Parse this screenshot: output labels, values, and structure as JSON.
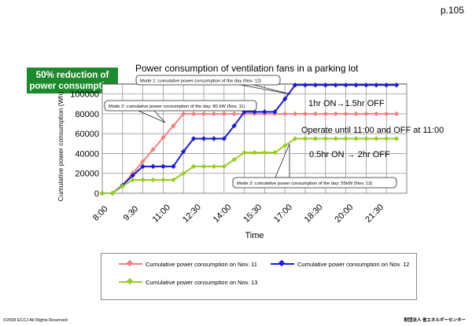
{
  "page": {
    "number": "p.105",
    "badge_line1": "50% reduction of",
    "badge_line2": "power consumption",
    "copyright": "©2008 ECCJ All Rights Reserved",
    "org": "財団法人 省エネルギーセンター"
  },
  "colors": {
    "nov11": "#f08080",
    "nov12": "#1a1adc",
    "nov13": "#99cc22",
    "badge": "#1e8a2e"
  },
  "chart_data": {
    "type": "line",
    "title": "Power consumption of ventilation fans in a parking lot",
    "xlabel": "Time",
    "ylabel": "Cumulative power consumption (Wh)",
    "x_ticks": [
      "8:00",
      "9:30",
      "11:00",
      "12:30",
      "14:00",
      "15:30",
      "17:00",
      "18:30",
      "20:00",
      "21:30"
    ],
    "y_ticks": [
      "0",
      "20000",
      "40000",
      "60000",
      "80000",
      "100000"
    ],
    "xlim_hours": [
      8,
      23
    ],
    "ylim": [
      0,
      110000
    ],
    "grid": true,
    "legend_position": "bottom",
    "series": [
      {
        "name": "Cumulative power consumption on Nov. 11",
        "color_key": "nov11",
        "x_hours": [
          8,
          8.5,
          9,
          9.5,
          10,
          10.5,
          11,
          11.5,
          12,
          12.5,
          13,
          13.5,
          14,
          14.5,
          15,
          15.5,
          16,
          16.5,
          17,
          17.5,
          18,
          18.5,
          19,
          19.5,
          20,
          20.5,
          21,
          21.5,
          22,
          22.5
        ],
        "values": [
          0,
          0,
          8000,
          20000,
          32000,
          44000,
          56000,
          68000,
          80000,
          80000,
          80000,
          80000,
          80000,
          80000,
          80000,
          80000,
          80000,
          80000,
          80000,
          80000,
          80000,
          80000,
          80000,
          80000,
          80000,
          80000,
          80000,
          80000,
          80000,
          80000
        ]
      },
      {
        "name": "Cumulative power consumption on Nov. 12",
        "color_key": "nov12",
        "x_hours": [
          8,
          8.5,
          9,
          9.5,
          10,
          10.5,
          11,
          11.5,
          12,
          12.5,
          13,
          13.5,
          14,
          14.5,
          15,
          15.5,
          16,
          16.5,
          17,
          17.5,
          18,
          18.5,
          19,
          19.5,
          20,
          20.5,
          21,
          21.5,
          22,
          22.5
        ],
        "values": [
          0,
          0,
          8000,
          18000,
          27000,
          27000,
          27000,
          27000,
          42000,
          55000,
          55000,
          55000,
          55000,
          68000,
          82000,
          82000,
          82000,
          82000,
          95000,
          109000,
          109000,
          109000,
          109000,
          109000,
          109000,
          109000,
          109000,
          109000,
          109000,
          109000
        ]
      },
      {
        "name": "Cumulative power consumption on Nov. 13",
        "color_key": "nov13",
        "x_hours": [
          8,
          8.5,
          9,
          9.5,
          10,
          10.5,
          11,
          11.5,
          12,
          12.5,
          13,
          13.5,
          14,
          14.5,
          15,
          15.5,
          16,
          16.5,
          17,
          17.5,
          18,
          18.5,
          19,
          19.5,
          20,
          20.5,
          21,
          21.5,
          22,
          22.5
        ],
        "values": [
          0,
          0,
          7000,
          13500,
          13500,
          13500,
          13500,
          13500,
          20000,
          27000,
          27000,
          27000,
          27000,
          34000,
          41000,
          41000,
          41000,
          41000,
          48000,
          55000,
          55000,
          55000,
          55000,
          55000,
          55000,
          55000,
          55000,
          55000,
          55000,
          55000
        ]
      }
    ],
    "annotations": [
      {
        "id": "mode1",
        "text": "Mode 1: cumulative power consumption of the day (Nov. 12)"
      },
      {
        "id": "mode2",
        "text": "Mode 2: cumulative power consumption of the day: 80 kW (Nov. 11)"
      },
      {
        "id": "mode3",
        "text": "Mode 3: cumulative power consumption of the day: 55kW (Nov. 13)"
      },
      {
        "id": "on1",
        "text": "1hr ON→1.5hr OFF"
      },
      {
        "id": "until11",
        "text": "Operate until 11:00 and OFF at 11:00"
      },
      {
        "id": "on05",
        "text": "0.5hr ON → 2hr OFF"
      }
    ]
  }
}
